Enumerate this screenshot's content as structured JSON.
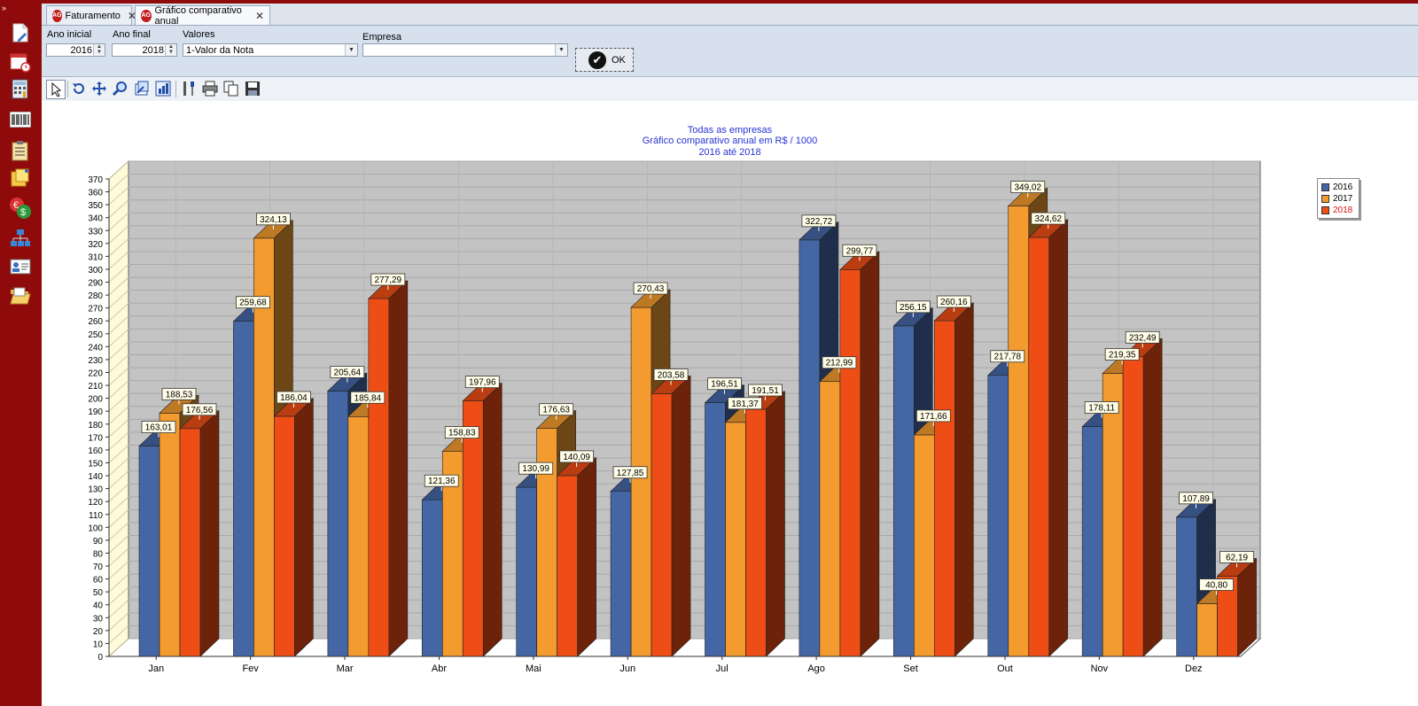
{
  "tabs": [
    {
      "label": "Faturamento",
      "logo": "AG"
    },
    {
      "label": "Gráfico comparativo anual",
      "logo": "AG"
    }
  ],
  "filters": {
    "ano_inicial_label": "Ano inicial",
    "ano_inicial_value": "2016",
    "ano_final_label": "Ano final",
    "ano_final_value": "2018",
    "valores_label": "Valores",
    "valores_value": "1-Valor da Nota",
    "empresa_label": "Empresa",
    "empresa_value": "",
    "ok_label": "OK"
  },
  "left_rail_icons": [
    "new-document-icon",
    "calendar-clock-icon",
    "calculator-icon",
    "barcode-icon",
    "clipboard-list-icon",
    "sticky-notes-icon",
    "currency-icon",
    "org-chart-icon",
    "contact-card-icon",
    "open-folder-icon"
  ],
  "toolbar_icons": [
    "pointer-icon",
    "rotate-icon",
    "move-icon",
    "zoom-icon",
    "zoom-box-icon",
    "chart-edit-icon",
    "tools-icon",
    "print-icon",
    "copy-icon",
    "save-icon"
  ],
  "colors": {
    "s2016": "#4466a5",
    "s2017": "#f39b2e",
    "s2018": "#ef4d16",
    "title": "#2633d4",
    "legend_2018_text": "#dd1111"
  },
  "chart_data": {
    "type": "bar",
    "title_lines": [
      "Todas as empresas",
      "Gráfico comparativo anual em R$ / 1000",
      "2016 até 2018"
    ],
    "categories": [
      "Jan",
      "Fev",
      "Mar",
      "Abr",
      "Mai",
      "Jun",
      "Jul",
      "Ago",
      "Set",
      "Out",
      "Nov",
      "Dez"
    ],
    "series": [
      {
        "name": "2016",
        "values": [
          163.01,
          259.68,
          205.64,
          121.36,
          130.99,
          127.85,
          196.51,
          322.72,
          256.15,
          217.78,
          178.11,
          107.89
        ]
      },
      {
        "name": "2017",
        "values": [
          188.53,
          324.13,
          185.84,
          158.83,
          176.63,
          270.43,
          181.37,
          212.99,
          171.66,
          349.02,
          219.35,
          40.8
        ]
      },
      {
        "name": "2018",
        "values": [
          176.56,
          186.04,
          277.29,
          197.96,
          140.09,
          203.58,
          191.51,
          299.77,
          260.16,
          324.62,
          232.49,
          62.19
        ]
      }
    ],
    "labels": [
      [
        "163,01",
        "259,68",
        "205,64",
        "121,36",
        "130,99",
        "127,85",
        "196,51",
        "322,72",
        "256,15",
        "217,78",
        "178,11",
        "107,89"
      ],
      [
        "188,53",
        "324,13",
        "185,84",
        "158,83",
        "176,63",
        "270,43",
        "181,37",
        "212,99",
        "171,66",
        "349,02",
        "219,35",
        "40,80"
      ],
      [
        "176,56",
        "186,04",
        "277,29",
        "197,96",
        "140,09",
        "203,58",
        "191,51",
        "299,77",
        "260,16",
        "324,62",
        "232,49",
        "62,19"
      ]
    ],
    "y_ticks": [
      "0",
      "10",
      "20",
      "30",
      "40",
      "50",
      "60",
      "70",
      "80",
      "90",
      "100",
      "110",
      "120",
      "130",
      "140",
      "150",
      "160",
      "170",
      "180",
      "190",
      "200",
      "210",
      "220",
      "230",
      "240",
      "250",
      "260",
      "270",
      "280",
      "290",
      "300",
      "310",
      "320",
      "330",
      "340",
      "350",
      "360",
      "370"
    ],
    "ylim": [
      0,
      370
    ],
    "grid": true,
    "legend": "right"
  }
}
